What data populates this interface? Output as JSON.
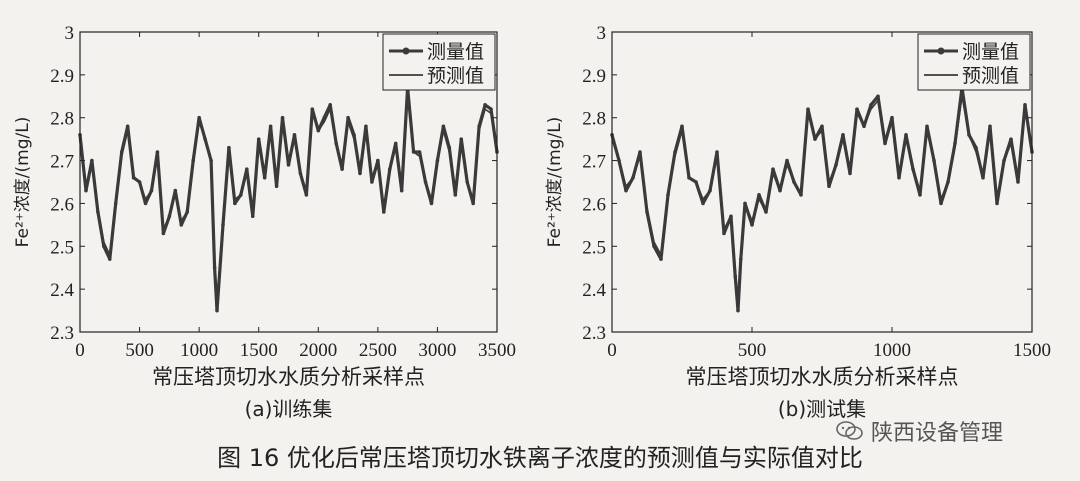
{
  "figure_caption": "图 16   优化后常压塔顶切水铁离子浓度的预测值与实际值对比",
  "watermark_text": "陕西设备管理",
  "colors": {
    "series_color": "#3a3a3a",
    "axis_color": "#222222",
    "background": "#f4f2ef"
  },
  "chart_data": [
    {
      "type": "line",
      "subtitle": "(a)训练集",
      "xlabel": "常压塔顶切水水质分析采样点",
      "ylabel": "Fe²⁺浓度/(mg/L)",
      "xlim": [
        0,
        3500
      ],
      "ylim": [
        2.3,
        3.0
      ],
      "xticks": [
        0,
        500,
        1000,
        1500,
        2000,
        2500,
        3000,
        3500
      ],
      "yticks": [
        2.3,
        2.4,
        2.5,
        2.6,
        2.7,
        2.8,
        2.9,
        3.0
      ],
      "ytick_labels": [
        "2.3",
        "2.4",
        "2.5",
        "2.6",
        "2.7",
        "2.8",
        "2.9",
        "3"
      ],
      "legend_position": "top-right",
      "legend": [
        "测量值",
        "预测值"
      ],
      "grid": false,
      "series": [
        {
          "name": "测量值",
          "marker": "dot",
          "x": [
            0,
            50,
            100,
            150,
            200,
            250,
            300,
            350,
            400,
            450,
            500,
            550,
            600,
            650,
            700,
            750,
            800,
            850,
            900,
            950,
            1000,
            1050,
            1100,
            1130,
            1150,
            1200,
            1250,
            1300,
            1350,
            1400,
            1450,
            1500,
            1550,
            1600,
            1650,
            1700,
            1750,
            1800,
            1850,
            1900,
            1950,
            2000,
            2050,
            2100,
            2150,
            2200,
            2250,
            2300,
            2350,
            2400,
            2450,
            2500,
            2550,
            2600,
            2650,
            2700,
            2750,
            2800,
            2850,
            2900,
            2950,
            3000,
            3050,
            3100,
            3150,
            3200,
            3250,
            3300,
            3350,
            3400,
            3450,
            3500
          ],
          "y": [
            2.76,
            2.63,
            2.7,
            2.58,
            2.5,
            2.47,
            2.6,
            2.72,
            2.78,
            2.66,
            2.65,
            2.6,
            2.63,
            2.72,
            2.53,
            2.57,
            2.63,
            2.55,
            2.58,
            2.7,
            2.8,
            2.75,
            2.7,
            2.45,
            2.35,
            2.55,
            2.73,
            2.6,
            2.62,
            2.68,
            2.57,
            2.75,
            2.66,
            2.78,
            2.64,
            2.8,
            2.69,
            2.76,
            2.67,
            2.62,
            2.82,
            2.77,
            2.8,
            2.83,
            2.74,
            2.68,
            2.8,
            2.76,
            2.67,
            2.78,
            2.65,
            2.7,
            2.58,
            2.68,
            2.74,
            2.63,
            2.87,
            2.72,
            2.72,
            2.65,
            2.6,
            2.7,
            2.78,
            2.73,
            2.62,
            2.75,
            2.65,
            2.6,
            2.78,
            2.83,
            2.82,
            2.72
          ]
        },
        {
          "name": "预测值",
          "marker": "none",
          "x": [
            0,
            50,
            100,
            150,
            200,
            250,
            300,
            350,
            400,
            450,
            500,
            550,
            600,
            650,
            700,
            750,
            800,
            850,
            900,
            950,
            1000,
            1050,
            1100,
            1130,
            1150,
            1200,
            1250,
            1300,
            1350,
            1400,
            1450,
            1500,
            1550,
            1600,
            1650,
            1700,
            1750,
            1800,
            1850,
            1900,
            1950,
            2000,
            2050,
            2100,
            2150,
            2200,
            2250,
            2300,
            2350,
            2400,
            2450,
            2500,
            2550,
            2600,
            2650,
            2700,
            2750,
            2800,
            2850,
            2900,
            2950,
            3000,
            3050,
            3100,
            3150,
            3200,
            3250,
            3300,
            3350,
            3400,
            3450,
            3500
          ],
          "y": [
            2.75,
            2.64,
            2.69,
            2.59,
            2.51,
            2.48,
            2.6,
            2.71,
            2.77,
            2.66,
            2.65,
            2.61,
            2.63,
            2.71,
            2.54,
            2.57,
            2.62,
            2.56,
            2.58,
            2.69,
            2.79,
            2.75,
            2.7,
            2.47,
            2.37,
            2.55,
            2.72,
            2.61,
            2.62,
            2.67,
            2.58,
            2.74,
            2.66,
            2.77,
            2.65,
            2.79,
            2.69,
            2.75,
            2.67,
            2.63,
            2.81,
            2.77,
            2.79,
            2.82,
            2.74,
            2.69,
            2.79,
            2.75,
            2.67,
            2.77,
            2.66,
            2.7,
            2.59,
            2.68,
            2.73,
            2.64,
            2.85,
            2.72,
            2.71,
            2.65,
            2.61,
            2.7,
            2.77,
            2.72,
            2.62,
            2.74,
            2.65,
            2.61,
            2.77,
            2.82,
            2.81,
            2.72
          ]
        }
      ]
    },
    {
      "type": "line",
      "subtitle": "(b)测试集",
      "xlabel": "常压塔顶切水水质分析采样点",
      "ylabel": "Fe²⁺浓度/(mg/L)",
      "xlim": [
        0,
        1500
      ],
      "ylim": [
        2.3,
        3.0
      ],
      "xticks": [
        0,
        500,
        1000,
        1500
      ],
      "yticks": [
        2.3,
        2.4,
        2.5,
        2.6,
        2.7,
        2.8,
        2.9,
        3.0
      ],
      "ytick_labels": [
        "2.3",
        "2.4",
        "2.5",
        "2.6",
        "2.7",
        "2.8",
        "2.9",
        "3"
      ],
      "legend_position": "top-right",
      "legend": [
        "测量值",
        "预测值"
      ],
      "grid": false,
      "series": [
        {
          "name": "测量值",
          "marker": "dot",
          "x": [
            0,
            25,
            50,
            75,
            100,
            125,
            150,
            175,
            200,
            225,
            250,
            275,
            300,
            325,
            350,
            375,
            400,
            425,
            440,
            450,
            460,
            475,
            500,
            525,
            550,
            575,
            600,
            625,
            650,
            675,
            700,
            725,
            750,
            775,
            800,
            825,
            850,
            875,
            900,
            925,
            950,
            975,
            1000,
            1025,
            1050,
            1075,
            1100,
            1125,
            1150,
            1175,
            1200,
            1225,
            1250,
            1275,
            1300,
            1325,
            1350,
            1375,
            1400,
            1425,
            1450,
            1475,
            1500
          ],
          "y": [
            2.76,
            2.7,
            2.63,
            2.66,
            2.72,
            2.58,
            2.5,
            2.47,
            2.62,
            2.72,
            2.78,
            2.66,
            2.65,
            2.6,
            2.63,
            2.72,
            2.53,
            2.57,
            2.43,
            2.35,
            2.47,
            2.6,
            2.55,
            2.62,
            2.58,
            2.68,
            2.63,
            2.7,
            2.65,
            2.62,
            2.82,
            2.75,
            2.78,
            2.64,
            2.69,
            2.76,
            2.67,
            2.82,
            2.78,
            2.83,
            2.85,
            2.74,
            2.8,
            2.66,
            2.76,
            2.68,
            2.62,
            2.78,
            2.7,
            2.6,
            2.65,
            2.74,
            2.87,
            2.76,
            2.73,
            2.66,
            2.78,
            2.6,
            2.7,
            2.75,
            2.65,
            2.83,
            2.72
          ]
        },
        {
          "name": "预测值",
          "marker": "none",
          "x": [
            0,
            25,
            50,
            75,
            100,
            125,
            150,
            175,
            200,
            225,
            250,
            275,
            300,
            325,
            350,
            375,
            400,
            425,
            440,
            450,
            460,
            475,
            500,
            525,
            550,
            575,
            600,
            625,
            650,
            675,
            700,
            725,
            750,
            775,
            800,
            825,
            850,
            875,
            900,
            925,
            950,
            975,
            1000,
            1025,
            1050,
            1075,
            1100,
            1125,
            1150,
            1175,
            1200,
            1225,
            1250,
            1275,
            1300,
            1325,
            1350,
            1375,
            1400,
            1425,
            1450,
            1475,
            1500
          ],
          "y": [
            2.75,
            2.7,
            2.64,
            2.66,
            2.71,
            2.59,
            2.51,
            2.48,
            2.62,
            2.71,
            2.77,
            2.66,
            2.65,
            2.61,
            2.63,
            2.71,
            2.54,
            2.57,
            2.45,
            2.37,
            2.48,
            2.6,
            2.56,
            2.61,
            2.58,
            2.67,
            2.63,
            2.69,
            2.65,
            2.62,
            2.81,
            2.75,
            2.77,
            2.65,
            2.69,
            2.75,
            2.67,
            2.81,
            2.78,
            2.82,
            2.84,
            2.74,
            2.79,
            2.66,
            2.75,
            2.68,
            2.63,
            2.77,
            2.7,
            2.61,
            2.65,
            2.73,
            2.85,
            2.76,
            2.72,
            2.66,
            2.77,
            2.61,
            2.7,
            2.74,
            2.65,
            2.82,
            2.72
          ]
        }
      ]
    }
  ]
}
